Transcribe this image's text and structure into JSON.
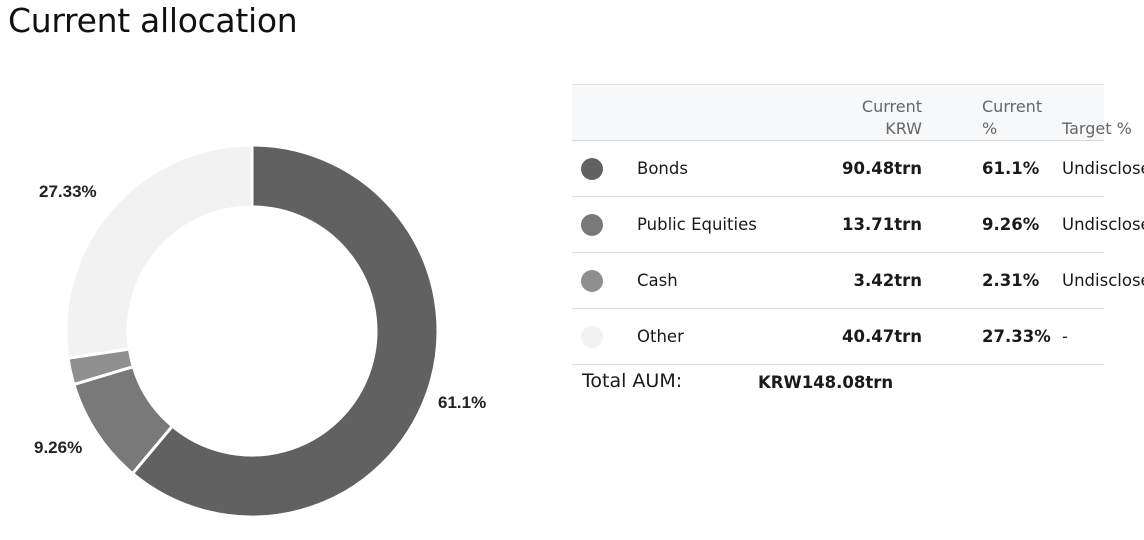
{
  "header": {
    "title": "Current allocation"
  },
  "table": {
    "headers": {
      "krw_line1": "Current",
      "krw_line2": "KRW",
      "pct_line1": "Current",
      "pct_line2": "%",
      "target": "Target %"
    },
    "rows": [
      {
        "name": "Bonds",
        "krw": "90.48trn",
        "pct": "61.1%",
        "target": "Undisclosed",
        "color": "#616161"
      },
      {
        "name": "Public Equities",
        "krw": "13.71trn",
        "pct": "9.26%",
        "target": "Undisclosed",
        "color": "#797979"
      },
      {
        "name": "Cash",
        "krw": "3.42trn",
        "pct": "2.31%",
        "target": "Undisclosed",
        "color": "#8f8f8f"
      },
      {
        "name": "Other",
        "krw": "40.47trn",
        "pct": "27.33%",
        "target": "-",
        "color": "#f2f2f2"
      }
    ]
  },
  "total": {
    "label": "Total AUM:",
    "value": "KRW148.08trn"
  },
  "chart_data": {
    "type": "pie",
    "donut": true,
    "categories": [
      "Bonds",
      "Public Equities",
      "Cash",
      "Other"
    ],
    "values": [
      61.1,
      9.26,
      2.31,
      27.33
    ],
    "slice_labels": [
      "61.1%",
      "9.26%",
      "",
      "27.33%"
    ],
    "colors": [
      "#616161",
      "#797979",
      "#8f8f8f",
      "#f2f2f2"
    ],
    "legend": "table-right"
  }
}
